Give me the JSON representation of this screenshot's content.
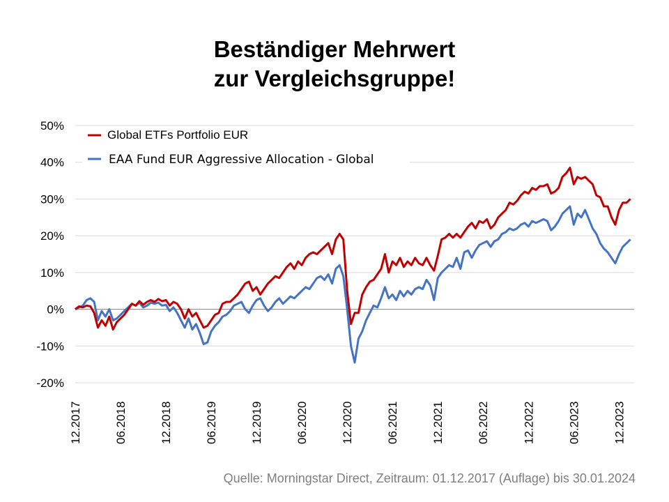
{
  "chart_data": {
    "type": "line",
    "title": "Beständiger Mehrwert zur Vergleichsgruppe!",
    "title_lines": [
      "Beständiger Mehrwert",
      "zur Vergleichsgruppe!"
    ],
    "xlabel": "",
    "ylabel": "",
    "ylim": [
      -20,
      50
    ],
    "yticks": [
      -20,
      -10,
      0,
      10,
      20,
      30,
      40,
      50
    ],
    "ytick_labels": [
      "-20%",
      "-10%",
      "0%",
      "10%",
      "20%",
      "30%",
      "40%",
      "50%"
    ],
    "xlim_months": [
      0,
      74
    ],
    "xticks_months": [
      0,
      6,
      12,
      18,
      24,
      30,
      36,
      42,
      48,
      54,
      60,
      66,
      72
    ],
    "xtick_labels": [
      "12.2017",
      "06.2018",
      "12.2018",
      "06.2019",
      "12.2019",
      "06.2020",
      "12.2020",
      "06.2021",
      "12.2021",
      "06.2022",
      "12.2022",
      "06.2023",
      "12.2023"
    ],
    "grid": true,
    "legend_position": "top-left",
    "x_unit": "months since 12.2017",
    "series": [
      {
        "name": "Global ETFs Portfolio EUR",
        "color": "#c00000",
        "points": [
          [
            0,
            0
          ],
          [
            0.5,
            0.8
          ],
          [
            1,
            0.5
          ],
          [
            1.5,
            1
          ],
          [
            2,
            0.8
          ],
          [
            2.5,
            -1
          ],
          [
            3,
            -5
          ],
          [
            3.5,
            -3
          ],
          [
            4,
            -4.5
          ],
          [
            4.5,
            -2
          ],
          [
            5,
            -5.5
          ],
          [
            5.5,
            -3.5
          ],
          [
            6,
            -2.5
          ],
          [
            6.5,
            -1.5
          ],
          [
            7,
            0
          ],
          [
            7.5,
            1.5
          ],
          [
            8,
            1
          ],
          [
            8.5,
            2.2
          ],
          [
            9,
            1.2
          ],
          [
            9.5,
            2
          ],
          [
            10,
            2.5
          ],
          [
            10.5,
            2
          ],
          [
            11,
            2.8
          ],
          [
            11.5,
            2.2
          ],
          [
            12,
            2.5
          ],
          [
            12.5,
            1
          ],
          [
            13,
            2
          ],
          [
            13.5,
            1.5
          ],
          [
            14,
            0
          ],
          [
            14.5,
            -2.5
          ],
          [
            15,
            0
          ],
          [
            15.5,
            -2
          ],
          [
            16,
            -1
          ],
          [
            16.5,
            -3
          ],
          [
            17,
            -5
          ],
          [
            17.5,
            -4.5
          ],
          [
            18,
            -3
          ],
          [
            18.5,
            -1.5
          ],
          [
            19,
            -1
          ],
          [
            19.5,
            1.5
          ],
          [
            20,
            2
          ],
          [
            20.5,
            2
          ],
          [
            21,
            3
          ],
          [
            21.5,
            4
          ],
          [
            22,
            5.5
          ],
          [
            22.5,
            7
          ],
          [
            23,
            7.5
          ],
          [
            23.5,
            5
          ],
          [
            24,
            6
          ],
          [
            24.5,
            4
          ],
          [
            25,
            5.5
          ],
          [
            25.5,
            7
          ],
          [
            26,
            8
          ],
          [
            26.5,
            9
          ],
          [
            27,
            8.5
          ],
          [
            27.5,
            10
          ],
          [
            28,
            11.5
          ],
          [
            28.5,
            12.5
          ],
          [
            29,
            11
          ],
          [
            29.5,
            13
          ],
          [
            30,
            12
          ],
          [
            30.5,
            14
          ],
          [
            31,
            15
          ],
          [
            31.5,
            15.5
          ],
          [
            32,
            15
          ],
          [
            32.5,
            16
          ],
          [
            33,
            17
          ],
          [
            33.5,
            18
          ],
          [
            34,
            15
          ],
          [
            34.5,
            19
          ],
          [
            35,
            20.5
          ],
          [
            35.5,
            19
          ],
          [
            36,
            5
          ],
          [
            36.5,
            -4
          ],
          [
            37,
            -1
          ],
          [
            37.5,
            -1
          ],
          [
            38,
            4
          ],
          [
            38.5,
            6
          ],
          [
            39,
            7.5
          ],
          [
            39.5,
            8
          ],
          [
            40,
            9.5
          ],
          [
            40.5,
            11
          ],
          [
            41,
            15
          ],
          [
            41.5,
            10
          ],
          [
            42,
            13
          ],
          [
            42.5,
            12
          ],
          [
            43,
            14
          ],
          [
            43.5,
            11.5
          ],
          [
            44,
            13
          ],
          [
            44.5,
            12
          ],
          [
            45,
            14
          ],
          [
            45.5,
            12.5
          ],
          [
            46,
            12
          ],
          [
            46.5,
            14
          ],
          [
            47,
            12
          ],
          [
            47.5,
            10.5
          ],
          [
            48,
            14.5
          ],
          [
            48.5,
            19
          ],
          [
            49,
            19.5
          ],
          [
            49.5,
            20.5
          ],
          [
            50,
            19.5
          ],
          [
            50.5,
            20.5
          ],
          [
            51,
            19.5
          ],
          [
            51.5,
            21
          ],
          [
            52,
            22.5
          ],
          [
            52.5,
            23.5
          ],
          [
            53,
            22
          ],
          [
            53.5,
            24
          ],
          [
            54,
            23.5
          ],
          [
            54.5,
            24.5
          ],
          [
            55,
            22
          ],
          [
            55.5,
            23
          ],
          [
            56,
            25
          ],
          [
            56.5,
            26
          ],
          [
            57,
            27
          ],
          [
            57.5,
            29
          ],
          [
            58,
            28.5
          ],
          [
            58.5,
            29.5
          ],
          [
            59,
            31
          ],
          [
            59.5,
            32
          ],
          [
            60,
            31.5
          ],
          [
            60.5,
            33
          ],
          [
            61,
            32.5
          ],
          [
            61.5,
            33.5
          ],
          [
            62,
            33.5
          ],
          [
            62.5,
            34
          ],
          [
            63,
            31.5
          ],
          [
            63.5,
            32
          ],
          [
            64,
            33
          ],
          [
            64.5,
            36
          ],
          [
            65,
            37
          ],
          [
            65.5,
            38.5
          ],
          [
            66,
            34
          ],
          [
            66.5,
            36
          ],
          [
            67,
            35.5
          ],
          [
            67.5,
            36
          ],
          [
            68,
            35
          ],
          [
            68.5,
            34
          ],
          [
            69,
            31
          ],
          [
            69.5,
            30.5
          ],
          [
            70,
            28
          ],
          [
            70.5,
            28
          ],
          [
            71,
            25
          ],
          [
            71.5,
            23
          ],
          [
            72,
            27
          ],
          [
            72.5,
            29
          ],
          [
            73,
            29
          ],
          [
            73.5,
            30
          ]
        ]
      },
      {
        "name": "EAA Fund EUR Aggressive Allocation - Global",
        "color": "#4472c4",
        "points": [
          [
            0,
            0
          ],
          [
            0.5,
            0.5
          ],
          [
            1,
            1
          ],
          [
            1.5,
            2.5
          ],
          [
            2,
            3
          ],
          [
            2.5,
            2
          ],
          [
            3,
            -3
          ],
          [
            3.5,
            -0.5
          ],
          [
            4,
            -2
          ],
          [
            4.5,
            0
          ],
          [
            5,
            -3
          ],
          [
            5.5,
            -2.5
          ],
          [
            6,
            -1.5
          ],
          [
            6.5,
            -0.5
          ],
          [
            7,
            0.5
          ],
          [
            7.5,
            1.5
          ],
          [
            8,
            1
          ],
          [
            8.5,
            1.8
          ],
          [
            9,
            0.5
          ],
          [
            9.5,
            1
          ],
          [
            10,
            1.8
          ],
          [
            10.5,
            1.5
          ],
          [
            11,
            1.8
          ],
          [
            11.5,
            1
          ],
          [
            12,
            1.2
          ],
          [
            12.5,
            -0.5
          ],
          [
            13,
            0.5
          ],
          [
            13.5,
            -1
          ],
          [
            14,
            -3
          ],
          [
            14.5,
            -5
          ],
          [
            15,
            -2.5
          ],
          [
            15.5,
            -5.5
          ],
          [
            16,
            -4
          ],
          [
            16.5,
            -6.5
          ],
          [
            17,
            -9.5
          ],
          [
            17.5,
            -9
          ],
          [
            18,
            -6
          ],
          [
            18.5,
            -4.5
          ],
          [
            19,
            -3.5
          ],
          [
            19.5,
            -2
          ],
          [
            20,
            -1.5
          ],
          [
            20.5,
            -0.5
          ],
          [
            21,
            1
          ],
          [
            21.5,
            1.5
          ],
          [
            22,
            2
          ],
          [
            22.5,
            0
          ],
          [
            23,
            -1
          ],
          [
            23.5,
            1
          ],
          [
            24,
            2.5
          ],
          [
            24.5,
            3
          ],
          [
            25,
            1
          ],
          [
            25.5,
            -0.5
          ],
          [
            26,
            0.5
          ],
          [
            26.5,
            2
          ],
          [
            27,
            3
          ],
          [
            27.5,
            1.5
          ],
          [
            28,
            2.5
          ],
          [
            28.5,
            3.5
          ],
          [
            29,
            3
          ],
          [
            29.5,
            4
          ],
          [
            30,
            5
          ],
          [
            30.5,
            6
          ],
          [
            31,
            5.5
          ],
          [
            31.5,
            7
          ],
          [
            32,
            8.5
          ],
          [
            32.5,
            9
          ],
          [
            33,
            8
          ],
          [
            33.5,
            9.5
          ],
          [
            34,
            7
          ],
          [
            34.5,
            11
          ],
          [
            35,
            12
          ],
          [
            35.5,
            9
          ],
          [
            36,
            0
          ],
          [
            36.5,
            -10
          ],
          [
            37,
            -14.5
          ],
          [
            37.5,
            -8
          ],
          [
            38,
            -6
          ],
          [
            38.5,
            -3
          ],
          [
            39,
            -1
          ],
          [
            39.5,
            1
          ],
          [
            40,
            0.5
          ],
          [
            40.5,
            3
          ],
          [
            41,
            6
          ],
          [
            41.5,
            3
          ],
          [
            42,
            4
          ],
          [
            42.5,
            2.5
          ],
          [
            43,
            5
          ],
          [
            43.5,
            3.5
          ],
          [
            44,
            5
          ],
          [
            44.5,
            4
          ],
          [
            45,
            5.5
          ],
          [
            45.5,
            6
          ],
          [
            46,
            5.5
          ],
          [
            46.5,
            8
          ],
          [
            47,
            6.5
          ],
          [
            47.5,
            2.5
          ],
          [
            48,
            8.5
          ],
          [
            48.5,
            10
          ],
          [
            49,
            11
          ],
          [
            49.5,
            12
          ],
          [
            50,
            11.5
          ],
          [
            50.5,
            14
          ],
          [
            51,
            11
          ],
          [
            51.5,
            15.5
          ],
          [
            52,
            16
          ],
          [
            52.5,
            14
          ],
          [
            53,
            16
          ],
          [
            53.5,
            17.5
          ],
          [
            54,
            18
          ],
          [
            54.5,
            18.5
          ],
          [
            55,
            17
          ],
          [
            55.5,
            18.5
          ],
          [
            56,
            19
          ],
          [
            56.5,
            20.5
          ],
          [
            57,
            21
          ],
          [
            57.5,
            22
          ],
          [
            58,
            21.5
          ],
          [
            58.5,
            22
          ],
          [
            59,
            23
          ],
          [
            59.5,
            23.5
          ],
          [
            60,
            22.5
          ],
          [
            60.5,
            24
          ],
          [
            61,
            23.5
          ],
          [
            61.5,
            24
          ],
          [
            62,
            24.5
          ],
          [
            62.5,
            24
          ],
          [
            63,
            21.5
          ],
          [
            63.5,
            22.5
          ],
          [
            64,
            24
          ],
          [
            64.5,
            26
          ],
          [
            65,
            27
          ],
          [
            65.5,
            28
          ],
          [
            66,
            23
          ],
          [
            66.5,
            26
          ],
          [
            67,
            25
          ],
          [
            67.5,
            27
          ],
          [
            68,
            24.5
          ],
          [
            68.5,
            22
          ],
          [
            69,
            20.5
          ],
          [
            69.5,
            18
          ],
          [
            70,
            16.5
          ],
          [
            70.5,
            15.5
          ],
          [
            71,
            14
          ],
          [
            71.5,
            12.5
          ],
          [
            72,
            15
          ],
          [
            72.5,
            17
          ],
          [
            73,
            18
          ],
          [
            73.5,
            19
          ]
        ]
      }
    ],
    "source": "Quelle: Morningstar Direct, Zeitraum: 01.12.2017 (Auflage) bis 30.01.2024"
  }
}
